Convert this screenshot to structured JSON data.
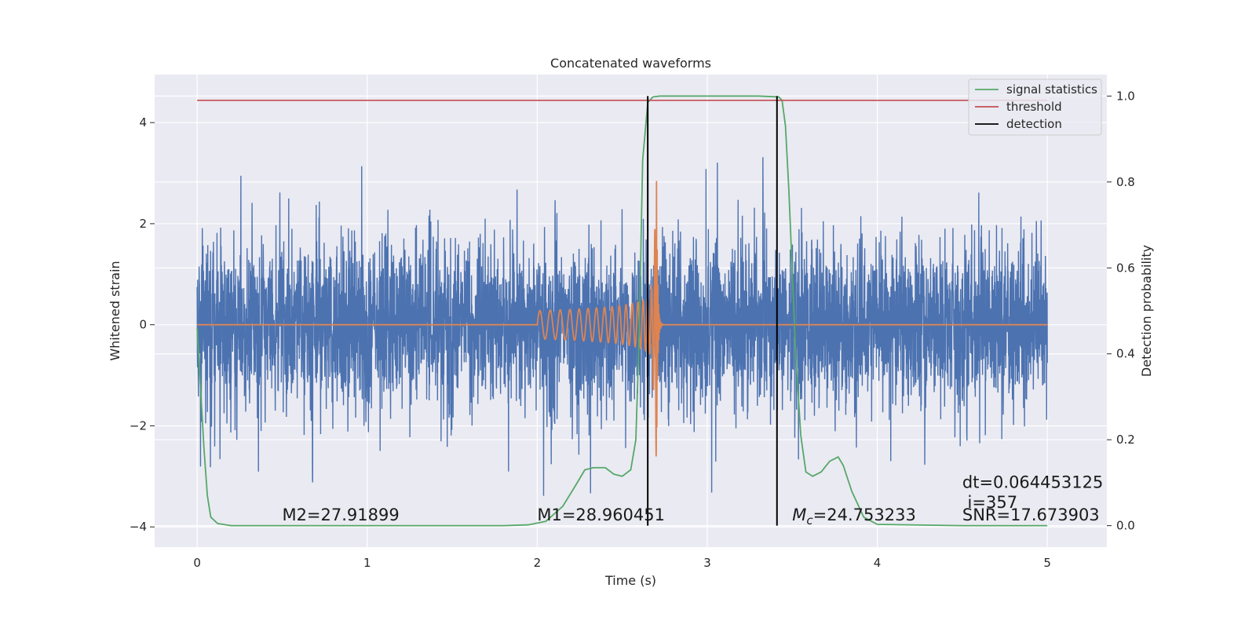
{
  "chart_data": {
    "type": "line",
    "title": "Concatenated waveforms",
    "xlabel": "Time (s)",
    "ylabel": "Whitened strain",
    "y2label": "Detection probability",
    "xlim": [
      -0.25,
      5.35
    ],
    "ylim": [
      -4.4,
      4.95
    ],
    "y2lim": [
      -0.05,
      1.05
    ],
    "x_ticks": [
      0,
      1,
      2,
      3,
      4,
      5
    ],
    "y_ticks": [
      -4,
      -2,
      0,
      2,
      4
    ],
    "y2_ticks": [
      0.0,
      0.2,
      0.4,
      0.6,
      0.8,
      1.0
    ],
    "x_tick_labels": [
      "0",
      "1",
      "2",
      "3",
      "4",
      "5"
    ],
    "y_tick_labels": [
      "−4",
      "−2",
      "0",
      "2",
      "4"
    ],
    "y2_tick_labels": [
      "0.0",
      "0.2",
      "0.4",
      "0.6",
      "0.8",
      "1.0"
    ],
    "grid": true,
    "background": "#eaeaf2",
    "legend_position": "top-right",
    "series": [
      {
        "kind": "noise",
        "axis": "left",
        "color": "#4c72b0",
        "x_range": [
          0,
          5
        ],
        "typical_amplitude": 1.3,
        "peak_amplitude": 3.5
      },
      {
        "kind": "chirp",
        "axis": "left",
        "color": "#dd8452",
        "start": 2.0,
        "merger": 2.7,
        "x_range": [
          0,
          5
        ],
        "peak_amplitude": 3.9
      },
      {
        "name": "signal statistics",
        "axis": "right",
        "color": "#55a868",
        "x": [
          0.0,
          0.02,
          0.04,
          0.06,
          0.08,
          0.12,
          0.2,
          0.5,
          1.0,
          1.5,
          1.8,
          1.95,
          2.05,
          2.15,
          2.22,
          2.28,
          2.33,
          2.4,
          2.45,
          2.5,
          2.55,
          2.58,
          2.6,
          2.62,
          2.65,
          2.68,
          2.72,
          3.0,
          3.3,
          3.42,
          3.44,
          3.46,
          3.48,
          3.52,
          3.55,
          3.58,
          3.62,
          3.67,
          3.72,
          3.77,
          3.8,
          3.85,
          3.92,
          4.0,
          4.5,
          5.0
        ],
        "y": [
          0.46,
          0.32,
          0.18,
          0.07,
          0.02,
          0.005,
          0.0,
          0.0,
          0.0,
          0.0,
          0.0,
          0.002,
          0.01,
          0.045,
          0.09,
          0.13,
          0.135,
          0.135,
          0.12,
          0.115,
          0.13,
          0.2,
          0.45,
          0.85,
          0.985,
          0.998,
          1.0,
          1.0,
          1.0,
          0.998,
          0.99,
          0.93,
          0.78,
          0.4,
          0.21,
          0.125,
          0.115,
          0.125,
          0.15,
          0.16,
          0.14,
          0.08,
          0.02,
          0.003,
          0.0,
          0.0
        ]
      },
      {
        "name": "threshold",
        "axis": "right",
        "color": "#c44e52",
        "value": 0.99,
        "x_range": [
          0,
          5
        ]
      },
      {
        "name": "detection",
        "axis": "right",
        "color": "#000000",
        "x": [
          2.65,
          3.41
        ],
        "y_range": [
          0.0,
          1.0
        ]
      }
    ],
    "annotations": [
      {
        "text": "M2=27.91899",
        "x": 0.5,
        "y": -3.75
      },
      {
        "text": "M1=28.960451",
        "x": 2.0,
        "y": -3.75
      },
      {
        "text": "=24.753233",
        "prefix": "M",
        "sub": "c",
        "x": 3.5,
        "y": -3.75
      },
      {
        "text": "dt=0.064453125",
        "x": 4.5,
        "y": -3.1
      },
      {
        "text": " i=357",
        "x": 4.5,
        "y": -3.5
      },
      {
        "text": "SNR=17.673903",
        "x": 4.5,
        "y": -3.75
      }
    ]
  }
}
